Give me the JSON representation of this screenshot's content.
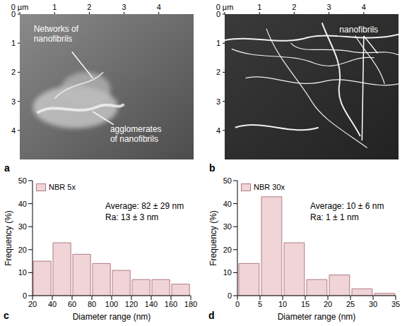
{
  "chart_data": [
    {
      "type": "image",
      "panel": "a",
      "xlim": [
        0,
        5
      ],
      "ylim": [
        0,
        5
      ],
      "xticks": [
        {
          "value": 0,
          "label": "0 µm"
        },
        1,
        2,
        3,
        4
      ],
      "yticks": [
        0,
        1,
        2,
        3,
        4
      ],
      "annotations": [
        "Networks of nanofibrils",
        "agglomerates of nanofibrils"
      ]
    },
    {
      "type": "image",
      "panel": "b",
      "xlim": [
        0,
        5
      ],
      "ylim": [
        0,
        5
      ],
      "xticks": [
        {
          "value": 0,
          "label": "0 µm"
        },
        1,
        2,
        3,
        4
      ],
      "yticks": [
        0,
        1,
        2,
        3,
        4
      ],
      "annotations": [
        "nanofibrils"
      ]
    },
    {
      "type": "histogram",
      "panel": "c",
      "series": [
        {
          "name": "NBR 5x",
          "color": "#f0d4d7",
          "values": [
            15,
            23,
            18,
            14,
            11,
            7,
            7,
            5
          ]
        }
      ],
      "bins": [
        20,
        40,
        60,
        80,
        100,
        120,
        140,
        160,
        180
      ],
      "xlabel": "Diameter range (nm)",
      "ylabel": "Frequency (%)",
      "xlim": [
        20,
        180
      ],
      "ylim": [
        0,
        50
      ],
      "xticks": [
        20,
        40,
        60,
        80,
        100,
        120,
        140,
        160,
        180
      ],
      "yticks": [
        0,
        10,
        20,
        30,
        40,
        50
      ],
      "annotations": [
        "Average: 82 ± 29 nm",
        "Ra: 13 ± 3 nm"
      ],
      "legend": "upper left"
    },
    {
      "type": "histogram",
      "panel": "d",
      "series": [
        {
          "name": "NBR 30x",
          "color": "#f0d4d7",
          "values": [
            14,
            43,
            23,
            7,
            9,
            3,
            1
          ]
        }
      ],
      "bins": [
        0,
        5,
        10,
        15,
        20,
        25,
        30,
        35
      ],
      "xlabel": "Diameter range (nm)",
      "ylabel": "Frequency (%)",
      "xlim": [
        0,
        35
      ],
      "ylim": [
        0,
        50
      ],
      "xticks": [
        0,
        5,
        10,
        15,
        20,
        25,
        30,
        35
      ],
      "yticks": [
        0,
        10,
        20,
        30,
        40,
        50
      ],
      "annotations": [
        "Average: 10 ± 6 nm",
        "Ra: 1 ± 1 nm"
      ],
      "legend": "upper left"
    }
  ]
}
